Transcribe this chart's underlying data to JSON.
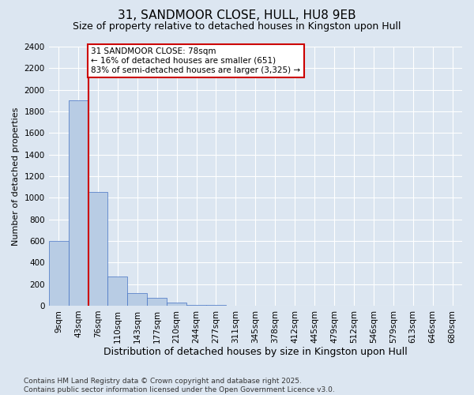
{
  "title": "31, SANDMOOR CLOSE, HULL, HU8 9EB",
  "subtitle": "Size of property relative to detached houses in Kingston upon Hull",
  "xlabel": "Distribution of detached houses by size in Kingston upon Hull",
  "ylabel": "Number of detached properties",
  "footer": "Contains HM Land Registry data © Crown copyright and database right 2025.\nContains public sector information licensed under the Open Government Licence v3.0.",
  "categories": [
    "9sqm",
    "43sqm",
    "76sqm",
    "110sqm",
    "143sqm",
    "177sqm",
    "210sqm",
    "244sqm",
    "277sqm",
    "311sqm",
    "345sqm",
    "378sqm",
    "412sqm",
    "445sqm",
    "479sqm",
    "512sqm",
    "546sqm",
    "579sqm",
    "613sqm",
    "646sqm",
    "680sqm"
  ],
  "values": [
    600,
    1900,
    1050,
    270,
    120,
    75,
    30,
    10,
    5,
    0,
    0,
    0,
    0,
    0,
    0,
    0,
    0,
    0,
    0,
    0,
    0
  ],
  "bar_color": "#b8cce4",
  "bar_edge_color": "#4472c4",
  "background_color": "#dce6f1",
  "grid_color": "#ffffff",
  "property_line_color": "#cc0000",
  "property_bar_index": 2,
  "annotation_text": "31 SANDMOOR CLOSE: 78sqm\n← 16% of detached houses are smaller (651)\n83% of semi-detached houses are larger (3,325) →",
  "annotation_box_color": "#cc0000",
  "ylim_max": 2400,
  "yticks": [
    0,
    200,
    400,
    600,
    800,
    1000,
    1200,
    1400,
    1600,
    1800,
    2000,
    2200,
    2400
  ],
  "title_fontsize": 11,
  "subtitle_fontsize": 9,
  "xlabel_fontsize": 9,
  "ylabel_fontsize": 8,
  "tick_fontsize": 7.5,
  "annotation_fontsize": 7.5,
  "footer_fontsize": 6.5
}
